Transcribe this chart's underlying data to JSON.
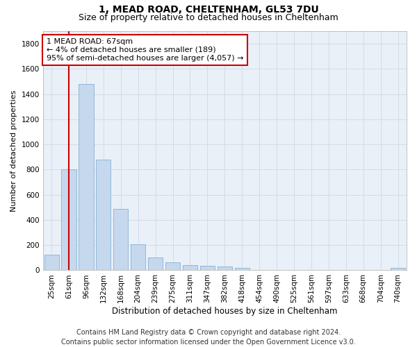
{
  "title1": "1, MEAD ROAD, CHELTENHAM, GL53 7DU",
  "title2": "Size of property relative to detached houses in Cheltenham",
  "xlabel": "Distribution of detached houses by size in Cheltenham",
  "ylabel": "Number of detached properties",
  "categories": [
    "25sqm",
    "61sqm",
    "96sqm",
    "132sqm",
    "168sqm",
    "204sqm",
    "239sqm",
    "275sqm",
    "311sqm",
    "347sqm",
    "382sqm",
    "418sqm",
    "454sqm",
    "490sqm",
    "525sqm",
    "561sqm",
    "597sqm",
    "633sqm",
    "668sqm",
    "704sqm",
    "740sqm"
  ],
  "values": [
    125,
    800,
    1480,
    880,
    490,
    205,
    100,
    62,
    40,
    35,
    28,
    18,
    0,
    0,
    0,
    0,
    0,
    0,
    0,
    0,
    18
  ],
  "bar_color": "#c5d8ed",
  "bar_edge_color": "#8fb8d8",
  "vline_x": 1.0,
  "vline_color": "#cc0000",
  "annotation_line1": "1 MEAD ROAD: 67sqm",
  "annotation_line2": "← 4% of detached houses are smaller (189)",
  "annotation_line3": "95% of semi-detached houses are larger (4,057) →",
  "annotation_box_color": "#ffffff",
  "annotation_box_edge_color": "#cc0000",
  "ylim": [
    0,
    1900
  ],
  "yticks": [
    0,
    200,
    400,
    600,
    800,
    1000,
    1200,
    1400,
    1600,
    1800
  ],
  "footer1": "Contains HM Land Registry data © Crown copyright and database right 2024.",
  "footer2": "Contains public sector information licensed under the Open Government Licence v3.0.",
  "bg_color": "#ffffff",
  "plot_bg_color": "#eaf0f8",
  "grid_color": "#d0d8e4",
  "title1_fontsize": 10,
  "title2_fontsize": 9,
  "xlabel_fontsize": 8.5,
  "ylabel_fontsize": 8,
  "tick_fontsize": 7.5,
  "footer_fontsize": 7,
  "annot_fontsize": 8
}
